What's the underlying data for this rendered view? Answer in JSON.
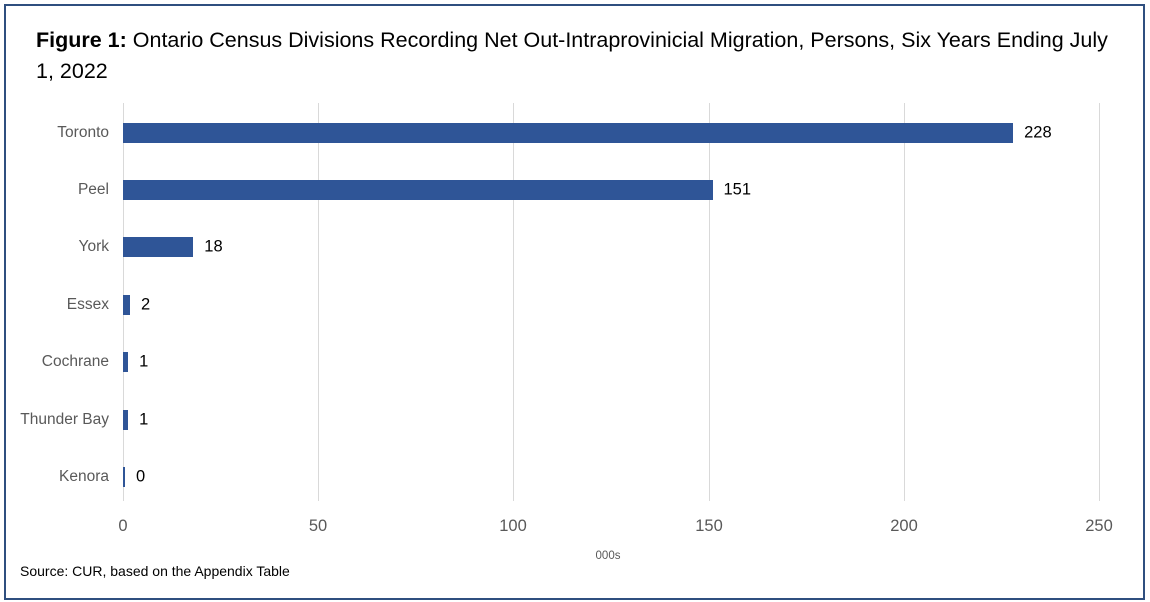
{
  "figure": {
    "title_prefix": "Figure 1:",
    "title_text": " Ontario Census Divisions Recording Net Out-Intraprovinicial Migration, Persons, Six Years Ending July 1, 2022",
    "source": "Source: CUR, based on the Appendix Table",
    "colors": {
      "bar": "#2f5597",
      "frame": "#2f4f7f",
      "grid": "#d9d9d9"
    }
  },
  "chart_data": {
    "type": "bar",
    "orientation": "horizontal",
    "title": "Figure 1: Ontario Census Divisions Recording Net Out-Intraprovinicial Migration, Persons, Six Years Ending July 1, 2022",
    "categories": [
      "Toronto",
      "Peel",
      "York",
      "Essex",
      "Cochrane",
      "Thunder Bay",
      "Kenora"
    ],
    "values": [
      228,
      151,
      18,
      2,
      1,
      1,
      0
    ],
    "data_labels": [
      "228",
      "151",
      "18",
      "2",
      "1",
      "1",
      "0"
    ],
    "bar_lengths_estimated": [
      228,
      151,
      18,
      1.8,
      1.3,
      1.3,
      0.5
    ],
    "xlabel": "000s",
    "ylabel": "",
    "xlim": [
      0,
      250
    ],
    "xticks": [
      0,
      50,
      100,
      150,
      200,
      250
    ],
    "xtick_labels": [
      "0",
      "50",
      "100",
      "150",
      "200",
      "250"
    ],
    "grid": "vertical",
    "legend": "none",
    "source": "Source: CUR, based on the Appendix Table"
  }
}
